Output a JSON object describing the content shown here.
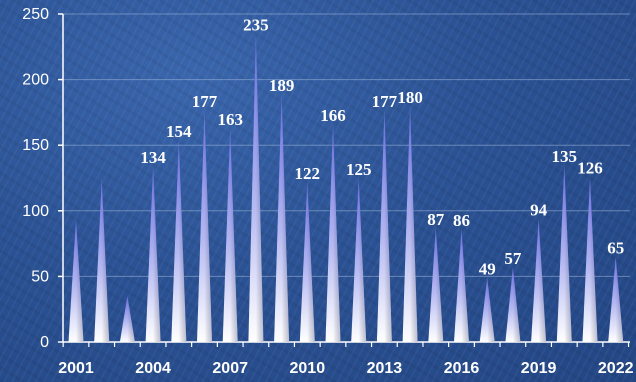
{
  "chart_data": {
    "type": "bar",
    "bar_shape": "spike",
    "title": "",
    "xlabel": "",
    "ylabel": "",
    "categories": [
      "2001",
      "2002",
      "2003",
      "2004",
      "2005",
      "2006",
      "2007",
      "2008",
      "2009",
      "2010",
      "2011",
      "2012",
      "2013",
      "2014",
      "2015",
      "2016",
      "2017",
      "2018",
      "2019",
      "2020",
      "2021",
      "2022"
    ],
    "x_tick_labels": [
      "2001",
      "2004",
      "2007",
      "2010",
      "2013",
      "2016",
      "2019",
      "2022"
    ],
    "values": [
      94,
      125,
      35,
      134,
      154,
      177,
      163,
      235,
      189,
      122,
      166,
      125,
      177,
      180,
      87,
      86,
      49,
      57,
      94,
      135,
      126,
      65
    ],
    "data_labels": [
      {
        "category": "2004",
        "text": "134"
      },
      {
        "category": "2005",
        "text": "154"
      },
      {
        "category": "2006",
        "text": "177"
      },
      {
        "category": "2007",
        "text": "163"
      },
      {
        "category": "2008",
        "text": "235"
      },
      {
        "category": "2009",
        "text": "189"
      },
      {
        "category": "2010",
        "text": "122"
      },
      {
        "category": "2011",
        "text": "166"
      },
      {
        "category": "2012",
        "text": "125"
      },
      {
        "category": "2013",
        "text": "177"
      },
      {
        "category": "2014",
        "text": "180"
      },
      {
        "category": "2015",
        "text": "87"
      },
      {
        "category": "2016",
        "text": "86"
      },
      {
        "category": "2017",
        "text": "49"
      },
      {
        "category": "2018",
        "text": "57"
      },
      {
        "category": "2019",
        "text": "94"
      },
      {
        "category": "2020",
        "text": "135"
      },
      {
        "category": "2021",
        "text": "126"
      },
      {
        "category": "2022",
        "text": "65"
      }
    ],
    "y_ticks": [
      0,
      50,
      100,
      150,
      200,
      250
    ],
    "ylim": [
      0,
      250
    ],
    "grid": true,
    "legend": "none",
    "colors": {
      "background": "#2b5294",
      "spike_top": "#6a6ee0",
      "spike_bottom": "#ffffff",
      "grid": "#9fb6dc",
      "text": "#ffffff"
    }
  }
}
